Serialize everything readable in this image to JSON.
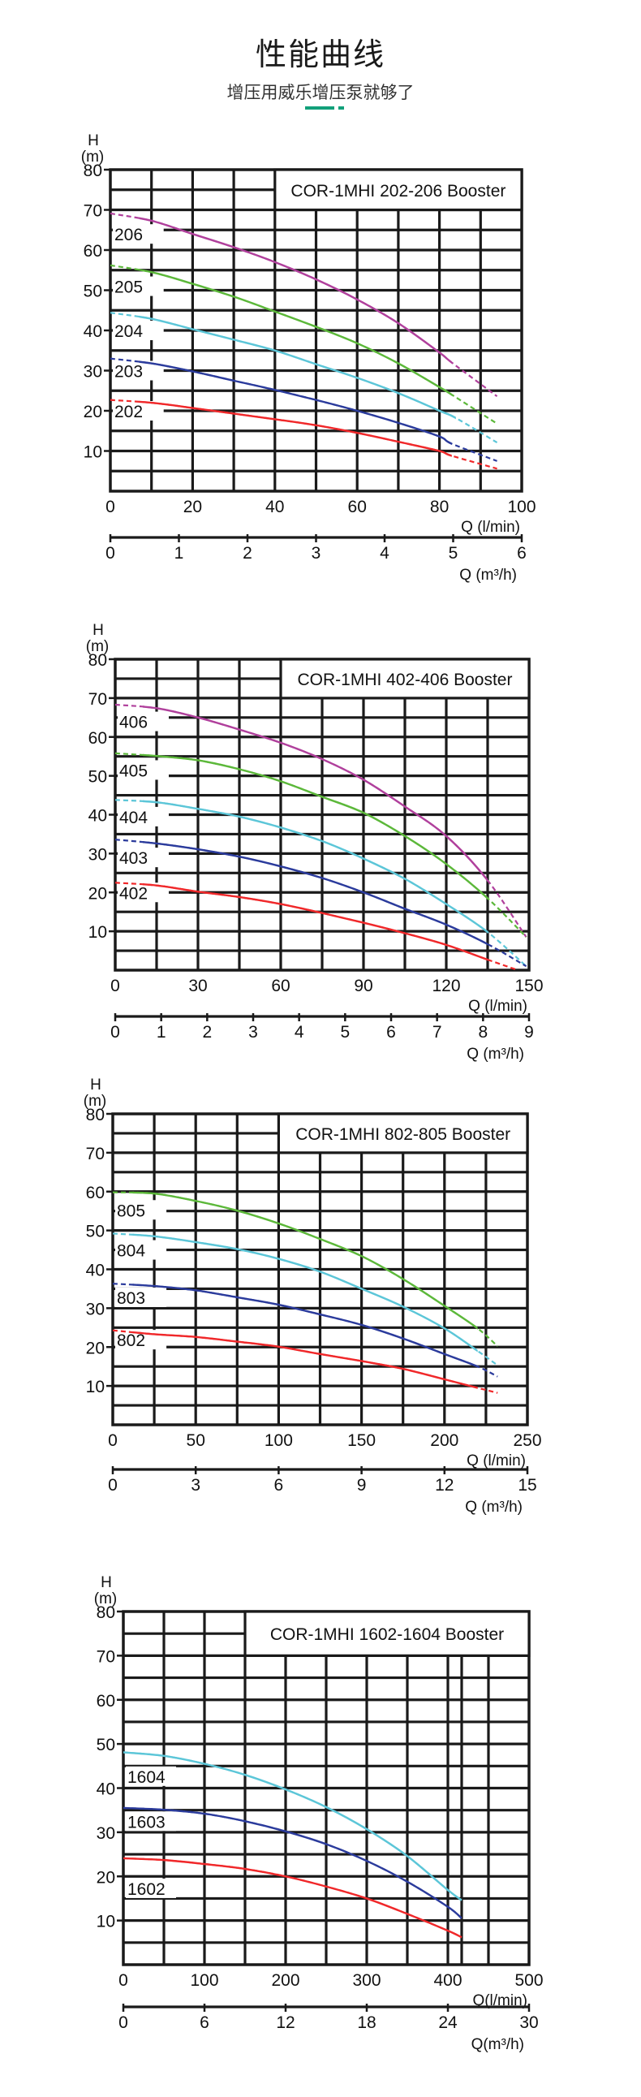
{
  "header": {
    "title": "性能曲线",
    "subtitle": "增压用威乐增压泵就够了",
    "accent_color": "#12a07a"
  },
  "chart_data": [
    {
      "type": "line",
      "title": "COR-1MHI 202-206 Booster",
      "ylabel_top": "H",
      "ylabel_unit": "(m)",
      "xlabel": "Q (l/min)",
      "x2label": "Q (m³/h)",
      "xlim": [
        0,
        100
      ],
      "ylim": [
        0,
        80
      ],
      "x2lim": [
        0,
        6
      ],
      "x_ticks": [
        "0",
        "20",
        "40",
        "60",
        "80",
        "100"
      ],
      "x2_ticks": [
        "0",
        "1",
        "2",
        "3",
        "4",
        "5",
        "6"
      ],
      "y_ticks": [
        "10",
        "20",
        "30",
        "40",
        "50",
        "60",
        "70",
        "80"
      ],
      "x_grid": [
        0,
        10,
        20,
        30,
        40,
        50,
        60,
        70,
        80,
        90,
        100
      ],
      "y_grid_step": 5,
      "grid": true,
      "series": [
        {
          "name": "206",
          "color": "#b0409c",
          "solid_from": 7,
          "solid_to": 83,
          "x": [
            0,
            10,
            20,
            30,
            40,
            50,
            60,
            70,
            80,
            83,
            94
          ],
          "y": [
            69.1,
            67.3,
            64,
            60.7,
            57,
            52.7,
            47.7,
            41.8,
            34.5,
            32,
            23.6
          ]
        },
        {
          "name": "205",
          "color": "#5cb83a",
          "solid_from": 7,
          "solid_to": 83,
          "x": [
            0,
            10,
            20,
            30,
            40,
            50,
            60,
            70,
            80,
            83,
            94
          ],
          "y": [
            56.2,
            54.5,
            51.6,
            48.4,
            44.7,
            40.9,
            36.8,
            31.8,
            25.9,
            24,
            16.8
          ]
        },
        {
          "name": "204",
          "color": "#5cc6d8",
          "solid_from": 7,
          "solid_to": 84,
          "x": [
            0,
            10,
            20,
            30,
            40,
            50,
            60,
            70,
            80,
            84,
            94
          ],
          "y": [
            44.4,
            42.9,
            40.3,
            37.7,
            35,
            31.6,
            28.2,
            24.4,
            20,
            18.2,
            12.1
          ]
        },
        {
          "name": "203",
          "color": "#2b3b9c",
          "solid_from": 7,
          "solid_to": 83,
          "x": [
            0,
            10,
            20,
            30,
            40,
            50,
            60,
            70,
            80,
            83,
            94
          ],
          "y": [
            33,
            31.8,
            29.8,
            27.5,
            25.2,
            22.7,
            20,
            17,
            13.6,
            11.8,
            7.5
          ]
        },
        {
          "name": "202",
          "color": "#f0282a",
          "solid_from": 7,
          "solid_to": 83,
          "x": [
            0,
            10,
            20,
            30,
            40,
            50,
            60,
            70,
            80,
            83,
            94
          ],
          "y": [
            22.7,
            22,
            20.7,
            19.3,
            17.9,
            16.4,
            14.5,
            12.3,
            10,
            8.8,
            5.6
          ]
        }
      ]
    },
    {
      "type": "line",
      "title": "COR-1MHI 402-406 Booster",
      "ylabel_top": "H",
      "ylabel_unit": "(m)",
      "xlabel": "Q (l/min)",
      "x2label": "Q (m³/h)",
      "xlim": [
        0,
        150
      ],
      "ylim": [
        0,
        80
      ],
      "x2lim": [
        0,
        9
      ],
      "x_ticks": [
        "0",
        "30",
        "60",
        "90",
        "120",
        "150"
      ],
      "x2_ticks": [
        "0",
        "1",
        "2",
        "3",
        "4",
        "5",
        "6",
        "7",
        "8",
        "9"
      ],
      "y_ticks": [
        "10",
        "20",
        "30",
        "40",
        "50",
        "60",
        "70",
        "80"
      ],
      "x_grid": [
        0,
        15,
        30,
        45,
        60,
        75,
        90,
        105,
        120,
        135,
        150
      ],
      "y_grid_step": 5,
      "grid": true,
      "series": [
        {
          "name": "406",
          "color": "#b0409c",
          "solid_from": 10,
          "solid_to": 135,
          "x": [
            0,
            15,
            30,
            45,
            60,
            75,
            90,
            105,
            120,
            135,
            149
          ],
          "y": [
            68.3,
            67.4,
            65,
            61.9,
            58.5,
            54.3,
            49,
            42.1,
            34.5,
            23.1,
            8.5
          ]
        },
        {
          "name": "405",
          "color": "#5cb83a",
          "solid_from": 10,
          "solid_to": 135,
          "x": [
            0,
            15,
            30,
            45,
            60,
            75,
            90,
            105,
            120,
            135,
            149
          ],
          "y": [
            55.8,
            55.1,
            54,
            51.7,
            48.6,
            44.6,
            40.5,
            34.5,
            27.3,
            18.5,
            8.5
          ]
        },
        {
          "name": "404",
          "color": "#5cc6d8",
          "solid_from": 10,
          "solid_to": 135,
          "x": [
            0,
            15,
            30,
            45,
            60,
            75,
            90,
            105,
            120,
            135,
            149
          ],
          "y": [
            43.8,
            43.2,
            41.5,
            39.5,
            36.7,
            33.2,
            28.7,
            23.5,
            17,
            9.8,
            1
          ]
        },
        {
          "name": "403",
          "color": "#2b3b9c",
          "solid_from": 10,
          "solid_to": 135,
          "x": [
            0,
            15,
            30,
            45,
            60,
            75,
            90,
            105,
            120,
            135,
            149
          ],
          "y": [
            33.6,
            32.6,
            31.1,
            29.2,
            26.7,
            23.7,
            20,
            15.8,
            11.7,
            6.7,
            1
          ]
        },
        {
          "name": "402",
          "color": "#f0282a",
          "solid_from": 10,
          "solid_to": 135,
          "x": [
            0,
            15,
            30,
            45,
            60,
            75,
            90,
            105,
            120,
            135,
            146
          ],
          "y": [
            22.5,
            21.8,
            20.2,
            18.8,
            17,
            14.7,
            12.2,
            9.5,
            6.5,
            2.7,
            0
          ]
        }
      ]
    },
    {
      "type": "line",
      "title": "COR-1MHI 802-805 Booster",
      "ylabel_top": "H",
      "ylabel_unit": "(m)",
      "xlabel": "Q (l/min)",
      "x2label": "Q (m³/h)",
      "xlim": [
        0,
        250
      ],
      "ylim": [
        0,
        80
      ],
      "x2lim": [
        0,
        15
      ],
      "x_ticks": [
        "0",
        "50",
        "100",
        "150",
        "200",
        "250"
      ],
      "x2_ticks": [
        "0",
        "3",
        "6",
        "9",
        "12",
        "15"
      ],
      "y_ticks": [
        "10",
        "20",
        "30",
        "40",
        "50",
        "60",
        "70",
        "80"
      ],
      "x_grid": [
        0,
        25,
        50,
        75,
        100,
        125,
        150,
        175,
        200,
        225,
        250
      ],
      "y_grid_step": 5,
      "grid": true,
      "series": [
        {
          "name": "805",
          "color": "#5cb83a",
          "solid_from": 12,
          "solid_to": 220,
          "x": [
            0,
            25,
            50,
            75,
            100,
            125,
            150,
            175,
            200,
            220,
            232
          ],
          "y": [
            59.8,
            59.5,
            57.6,
            55.1,
            51.8,
            47.8,
            43.4,
            37.5,
            30.6,
            24.8,
            20.2
          ]
        },
        {
          "name": "804",
          "color": "#5cc6d8",
          "solid_from": 12,
          "solid_to": 220,
          "x": [
            0,
            25,
            50,
            75,
            100,
            125,
            150,
            175,
            200,
            220,
            232
          ],
          "y": [
            49.2,
            48.5,
            47,
            45.2,
            42.7,
            39.4,
            35,
            30.4,
            24.8,
            19,
            15.3
          ]
        },
        {
          "name": "803",
          "color": "#2b3b9c",
          "solid_from": 12,
          "solid_to": 220,
          "x": [
            0,
            25,
            50,
            75,
            100,
            125,
            150,
            175,
            200,
            220,
            232
          ],
          "y": [
            36.3,
            35.7,
            34.6,
            32.8,
            30.9,
            28.4,
            25.7,
            22.2,
            18.2,
            15,
            12.4
          ]
        },
        {
          "name": "802",
          "color": "#f0282a",
          "solid_from": 12,
          "solid_to": 220,
          "x": [
            0,
            25,
            50,
            75,
            100,
            125,
            150,
            175,
            200,
            220,
            232
          ],
          "y": [
            24.3,
            23.3,
            22.6,
            21.4,
            20.1,
            18.2,
            16.4,
            14.4,
            11.7,
            9.5,
            8.2
          ]
        }
      ]
    },
    {
      "type": "line",
      "title": "COR-1MHI 1602-1604 Booster",
      "ylabel_top": "H",
      "ylabel_unit": "(m)",
      "xlabel": "Q(l/min)",
      "x2label": "Q(m³/h)",
      "xlim": [
        0,
        500
      ],
      "ylim": [
        0,
        80
      ],
      "x2lim": [
        0,
        30
      ],
      "x_ticks": [
        "0",
        "100",
        "200",
        "300",
        "400",
        "500"
      ],
      "x2_ticks": [
        "0",
        "6",
        "12",
        "18",
        "24",
        "30"
      ],
      "y_ticks": [
        "10",
        "20",
        "30",
        "40",
        "50",
        "60",
        "70",
        "80"
      ],
      "x_grid": [
        0,
        50,
        100,
        150,
        200,
        250,
        300,
        350,
        400,
        417,
        450,
        500
      ],
      "y_grid_step": 5,
      "grid": true,
      "series": [
        {
          "name": "1604",
          "color": "#5cc6d8",
          "solid_from": 0,
          "solid_to": 417,
          "x": [
            0,
            50,
            100,
            150,
            200,
            250,
            300,
            350,
            400,
            417
          ],
          "y": [
            48.1,
            47.3,
            45.5,
            43,
            39.7,
            35.7,
            30.7,
            24.6,
            16.9,
            14.6
          ]
        },
        {
          "name": "1603",
          "color": "#2b3b9c",
          "solid_from": 0,
          "solid_to": 417,
          "x": [
            0,
            50,
            100,
            150,
            200,
            250,
            300,
            350,
            400,
            417
          ],
          "y": [
            35.5,
            35.1,
            34.2,
            32.5,
            30.2,
            27.3,
            23.5,
            18.8,
            13.1,
            10.5
          ]
        },
        {
          "name": "1602",
          "color": "#f0282a",
          "solid_from": 0,
          "solid_to": 417,
          "x": [
            0,
            50,
            100,
            150,
            200,
            250,
            300,
            350,
            400,
            417
          ],
          "y": [
            24.1,
            23.7,
            22.8,
            21.7,
            20,
            17.7,
            15,
            11.5,
            7.7,
            6.2
          ]
        }
      ]
    }
  ]
}
